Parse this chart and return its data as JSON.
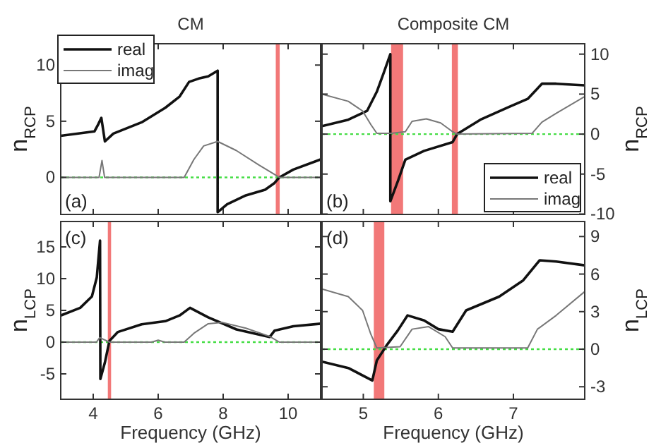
{
  "chart_data": [
    {
      "type": "line",
      "title": "CM",
      "ylabel": "n$_{RCP}$",
      "xlim": [
        3,
        11
      ],
      "xticks": [
        4,
        6,
        8,
        10
      ],
      "ylim": [
        -3.3,
        11.9
      ],
      "yticks": [
        0,
        5,
        10
      ],
      "tick_labels": "y",
      "legend": "top left",
      "annotations": [
        "(a)"
      ],
      "series": [
        {
          "name": "real",
          "color": "#111111",
          "x": [
            3,
            4.04,
            4.15,
            4.25,
            4.36,
            4.62,
            5.49,
            6.22,
            6.66,
            6.95,
            7.25,
            7.54,
            7.83,
            7.83,
            8.12,
            8.7,
            9.29,
            9.58,
            9.73,
            10.16,
            11
          ],
          "values": [
            3.7,
            4.1,
            4.7,
            5.3,
            3.2,
            3.9,
            4.9,
            6.2,
            7.2,
            8.5,
            8.8,
            9.0,
            9.5,
            -3.1,
            -2.4,
            -1.6,
            -1.1,
            -0.5,
            0,
            0.7,
            1.6
          ]
        },
        {
          "name": "imag",
          "color": "#777777",
          "x": [
            3,
            4.18,
            4.27,
            4.35,
            6.8,
            7.1,
            7.4,
            7.83,
            8.4,
            9.1,
            9.73,
            11
          ],
          "values": [
            0,
            0,
            1.5,
            0,
            0,
            1.6,
            2.8,
            3.2,
            2.4,
            1.1,
            0,
            0
          ]
        }
      ],
      "ref_lines": [
        {
          "axis": "y",
          "value": 0,
          "color": "#44dd44",
          "line_style": "dotted"
        }
      ],
      "bands": [
        {
          "axis": "x",
          "from": 9.62,
          "to": 9.74,
          "color": "#f06060"
        }
      ]
    },
    {
      "type": "line",
      "title": "Composite CM",
      "ylabel": "n$_{RCP}$",
      "xlim": [
        4.45,
        7.95
      ],
      "xticks": [
        5,
        6,
        7
      ],
      "ylim": [
        -10.05,
        11.3
      ],
      "yticks": [
        -10,
        -5,
        0,
        5,
        10
      ],
      "tick_labels": "y",
      "legend": "bottom right",
      "annotations": [
        "(b)"
      ],
      "series": [
        {
          "name": "real",
          "color": "#111111",
          "x": [
            4.45,
            4.8,
            5.05,
            5.18,
            5.27,
            5.36,
            5.36,
            5.46,
            5.56,
            5.81,
            6.19,
            6.25,
            6.56,
            6.94,
            7.19,
            7.38,
            7.57,
            7.95
          ],
          "values": [
            1.0,
            1.8,
            2.9,
            5.3,
            7.6,
            10.0,
            -8.4,
            -5.9,
            -3.2,
            -2.1,
            -1.0,
            0,
            1.8,
            3.4,
            4.4,
            6.3,
            6.3,
            6.1
          ]
        },
        {
          "name": "imag",
          "color": "#777777",
          "x": [
            4.45,
            4.8,
            4.99,
            5.1,
            5.18,
            5.37,
            5.56,
            5.65,
            5.84,
            6.03,
            6.19,
            6.25,
            7.25,
            7.38,
            7.57,
            7.95
          ],
          "values": [
            5.0,
            4.1,
            2.9,
            1.2,
            0.1,
            0.1,
            0.3,
            1.6,
            1.9,
            1.4,
            0.3,
            0,
            0.1,
            1.5,
            2.6,
            4.7
          ]
        }
      ],
      "ref_lines": [
        {
          "axis": "y",
          "value": 0,
          "color": "#44dd44",
          "line_style": "dotted"
        }
      ],
      "bands": [
        {
          "axis": "x",
          "from": 5.37,
          "to": 5.53,
          "color": "#f06060"
        },
        {
          "axis": "x",
          "from": 6.18,
          "to": 6.26,
          "color": "#f06060"
        }
      ]
    },
    {
      "type": "line",
      "xlabel": "Frequency (GHz)",
      "ylabel": "n$_{LCP}$",
      "xlim": [
        3,
        11
      ],
      "xticks": [
        4,
        6,
        8,
        10
      ],
      "ylim": [
        -9,
        19
      ],
      "yticks": [
        -5,
        0,
        5,
        10,
        15
      ],
      "annotations": [
        "(c)"
      ],
      "series": [
        {
          "color": "#111111",
          "x": [
            3,
            3.6,
            3.96,
            4.11,
            4.21,
            4.22,
            4.36,
            4.5,
            4.76,
            5.49,
            6.22,
            6.66,
            6.98,
            7.54,
            8.41,
            9.43,
            9.58,
            10.16,
            11
          ],
          "values": [
            4.2,
            5.4,
            7.2,
            10.2,
            16.0,
            -5.8,
            -3.2,
            0.2,
            1.6,
            2.8,
            3.3,
            4.2,
            5.4,
            3.9,
            2.0,
            0.8,
            1.8,
            2.5,
            2.9
          ]
        },
        {
          "color": "#777777",
          "x": [
            3,
            4.1,
            4.2,
            4.5,
            5.8,
            6.0,
            6.2,
            6.8,
            7.1,
            7.54,
            7.98,
            8.7,
            9.43,
            9.73,
            11
          ],
          "values": [
            0,
            0,
            0.7,
            0,
            0,
            0.3,
            0,
            0,
            1.4,
            2.9,
            3.1,
            2.2,
            0.9,
            0,
            0
          ]
        }
      ],
      "ref_lines": [
        {
          "axis": "y",
          "value": 0,
          "color": "#44dd44",
          "line_style": "dotted"
        }
      ],
      "bands": [
        {
          "axis": "x",
          "from": 4.45,
          "to": 4.55,
          "color": "#f06060"
        }
      ]
    },
    {
      "type": "line",
      "xlabel": "Frequency (GHz)",
      "ylabel": "n$_{LCP}$",
      "xlim": [
        4.45,
        7.95
      ],
      "xticks": [
        5,
        6,
        7
      ],
      "ylim": [
        -4,
        10.2
      ],
      "yticks": [
        -3,
        0,
        3,
        6,
        9
      ],
      "annotations": [
        "(d)"
      ],
      "series": [
        {
          "color": "#111111",
          "x": [
            4.45,
            4.8,
            5.12,
            5.18,
            5.31,
            5.46,
            5.59,
            5.81,
            6.0,
            6.19,
            6.37,
            6.81,
            7.13,
            7.35,
            7.57,
            7.95
          ],
          "values": [
            -1.0,
            -1.5,
            -2.5,
            -0.9,
            0.3,
            1.5,
            2.7,
            2.3,
            1.6,
            1.4,
            3.1,
            4.2,
            5.5,
            7.1,
            7.0,
            6.7
          ]
        },
        {
          "color": "#777777",
          "x": [
            4.45,
            4.8,
            4.99,
            5.1,
            5.18,
            5.49,
            5.65,
            5.87,
            6.09,
            6.19,
            7.19,
            7.32,
            7.57,
            7.95
          ],
          "values": [
            4.8,
            4.2,
            3.1,
            1.2,
            0.1,
            0.2,
            1.6,
            1.8,
            1.0,
            0.1,
            0.1,
            1.6,
            2.7,
            4.6
          ]
        }
      ],
      "ref_lines": [
        {
          "axis": "y",
          "value": 0,
          "color": "#44dd44",
          "line_style": "dotted"
        }
      ],
      "bands": [
        {
          "axis": "x",
          "from": 5.14,
          "to": 5.28,
          "color": "#f06060"
        }
      ]
    }
  ]
}
